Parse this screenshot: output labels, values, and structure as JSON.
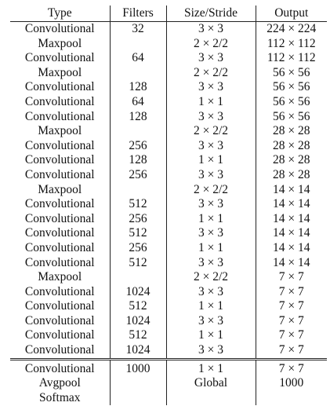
{
  "table": {
    "headers": [
      "Type",
      "Filters",
      "Size/Stride",
      "Output"
    ],
    "rows": [
      [
        "Convolutional",
        "32",
        "3 × 3",
        "224 × 224"
      ],
      [
        "Maxpool",
        "",
        "2 × 2/2",
        "112 × 112"
      ],
      [
        "Convolutional",
        "64",
        "3 × 3",
        "112 × 112"
      ],
      [
        "Maxpool",
        "",
        "2 × 2/2",
        "56 × 56"
      ],
      [
        "Convolutional",
        "128",
        "3 × 3",
        "56 × 56"
      ],
      [
        "Convolutional",
        "64",
        "1 × 1",
        "56 × 56"
      ],
      [
        "Convolutional",
        "128",
        "3 × 3",
        "56 × 56"
      ],
      [
        "Maxpool",
        "",
        "2 × 2/2",
        "28 × 28"
      ],
      [
        "Convolutional",
        "256",
        "3 × 3",
        "28 × 28"
      ],
      [
        "Convolutional",
        "128",
        "1 × 1",
        "28 × 28"
      ],
      [
        "Convolutional",
        "256",
        "3 × 3",
        "28 × 28"
      ],
      [
        "Maxpool",
        "",
        "2 × 2/2",
        "14 × 14"
      ],
      [
        "Convolutional",
        "512",
        "3 × 3",
        "14 × 14"
      ],
      [
        "Convolutional",
        "256",
        "1 × 1",
        "14 × 14"
      ],
      [
        "Convolutional",
        "512",
        "3 × 3",
        "14 × 14"
      ],
      [
        "Convolutional",
        "256",
        "1 × 1",
        "14 × 14"
      ],
      [
        "Convolutional",
        "512",
        "3 × 3",
        "14 × 14"
      ],
      [
        "Maxpool",
        "",
        "2 × 2/2",
        "7 × 7"
      ],
      [
        "Convolutional",
        "1024",
        "3 × 3",
        "7 × 7"
      ],
      [
        "Convolutional",
        "512",
        "1 × 1",
        "7 × 7"
      ],
      [
        "Convolutional",
        "1024",
        "3 × 3",
        "7 × 7"
      ],
      [
        "Convolutional",
        "512",
        "1 × 1",
        "7 × 7"
      ],
      [
        "Convolutional",
        "1024",
        "3 × 3",
        "7 × 7"
      ]
    ],
    "classifier_rows": [
      [
        "Convolutional",
        "1000",
        "1 × 1",
        "7 × 7"
      ],
      [
        "Avgpool",
        "",
        "Global",
        "1000"
      ],
      [
        "Softmax",
        "",
        "",
        ""
      ]
    ]
  }
}
